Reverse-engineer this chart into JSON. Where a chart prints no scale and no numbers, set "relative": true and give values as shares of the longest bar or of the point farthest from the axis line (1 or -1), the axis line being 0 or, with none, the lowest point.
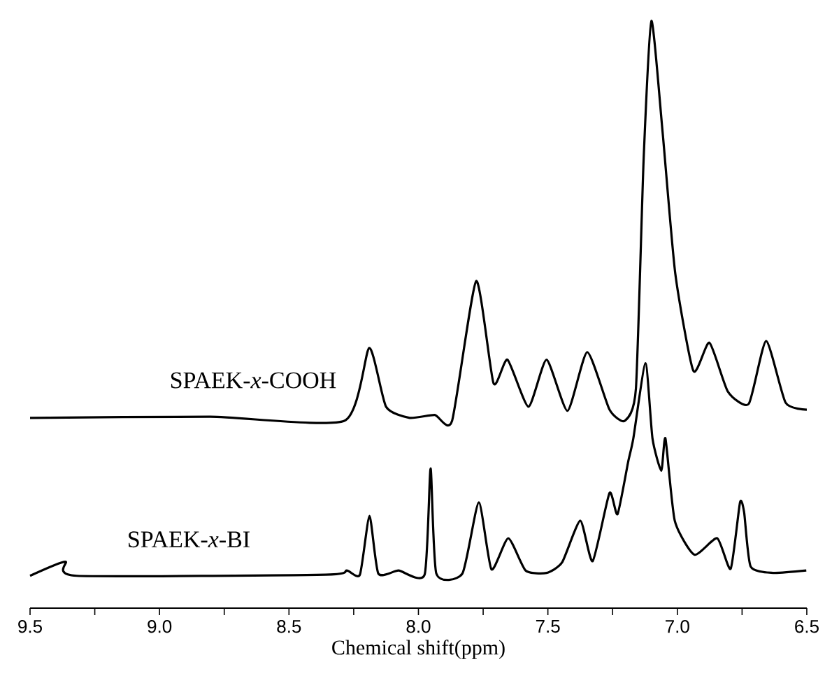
{
  "chart_data": {
    "type": "line",
    "xlabel": "Chemical shift(ppm)",
    "relative": true,
    "xlim": [
      9.5,
      6.5
    ],
    "xticks": [
      9.5,
      {
        "value": 9.25,
        "label": null
      },
      {
        "value": 9,
        "label": "9.0"
      },
      {
        "value": 8.75,
        "label": null
      },
      8.5,
      {
        "value": 8.25,
        "label": null
      },
      {
        "value": 8,
        "label": "8.0"
      },
      {
        "value": 7.75,
        "label": null
      },
      7.5,
      {
        "value": 7.25,
        "label": null
      },
      {
        "value": 7,
        "label": "7.0"
      },
      {
        "value": 6.75,
        "label": null
      },
      6.5
    ],
    "series": [
      {
        "name": "SPAEK-*x*-COOH",
        "color": "#000000",
        "x": [
          9.5,
          8.805,
          8.286,
          8.19,
          8.125,
          8.034,
          7.937,
          7.87,
          7.777,
          7.71,
          7.656,
          7.575,
          7.505,
          7.424,
          7.348,
          7.262,
          7.203,
          7.16,
          7.13,
          7.1,
          7.057,
          7.008,
          6.938,
          6.876,
          6.805,
          6.724,
          6.657,
          6.582,
          6.5
        ],
        "values": [
          0.324,
          0.326,
          0.319,
          0.443,
          0.343,
          0.324,
          0.329,
          0.319,
          0.557,
          0.383,
          0.423,
          0.343,
          0.423,
          0.336,
          0.436,
          0.338,
          0.319,
          0.374,
          0.767,
          1.0,
          0.811,
          0.57,
          0.404,
          0.452,
          0.369,
          0.348,
          0.455,
          0.35,
          0.338
        ]
      },
      {
        "name": "SPAEK-*x*-BI",
        "color": "#000000",
        "x": [
          9.5,
          9.364,
          9.32,
          8.358,
          8.277,
          8.226,
          8.189,
          8.155,
          8.077,
          7.976,
          7.953,
          7.931,
          7.83,
          7.767,
          7.718,
          7.653,
          7.586,
          7.505,
          7.445,
          7.375,
          7.327,
          7.262,
          7.231,
          7.19,
          7.17,
          7.123,
          7.096,
          7.062,
          7.046,
          7.01,
          6.934,
          6.846,
          6.794,
          6.758,
          6.742,
          6.717,
          6.63,
          6.502
        ],
        "values": [
          0.055,
          0.079,
          0.055,
          0.057,
          0.064,
          0.057,
          0.157,
          0.059,
          0.064,
          0.057,
          0.238,
          0.059,
          0.059,
          0.18,
          0.066,
          0.119,
          0.064,
          0.06,
          0.078,
          0.149,
          0.08,
          0.196,
          0.16,
          0.249,
          0.289,
          0.417,
          0.289,
          0.234,
          0.289,
          0.149,
          0.091,
          0.119,
          0.067,
          0.18,
          0.163,
          0.071,
          0.06,
          0.064
        ]
      }
    ]
  }
}
